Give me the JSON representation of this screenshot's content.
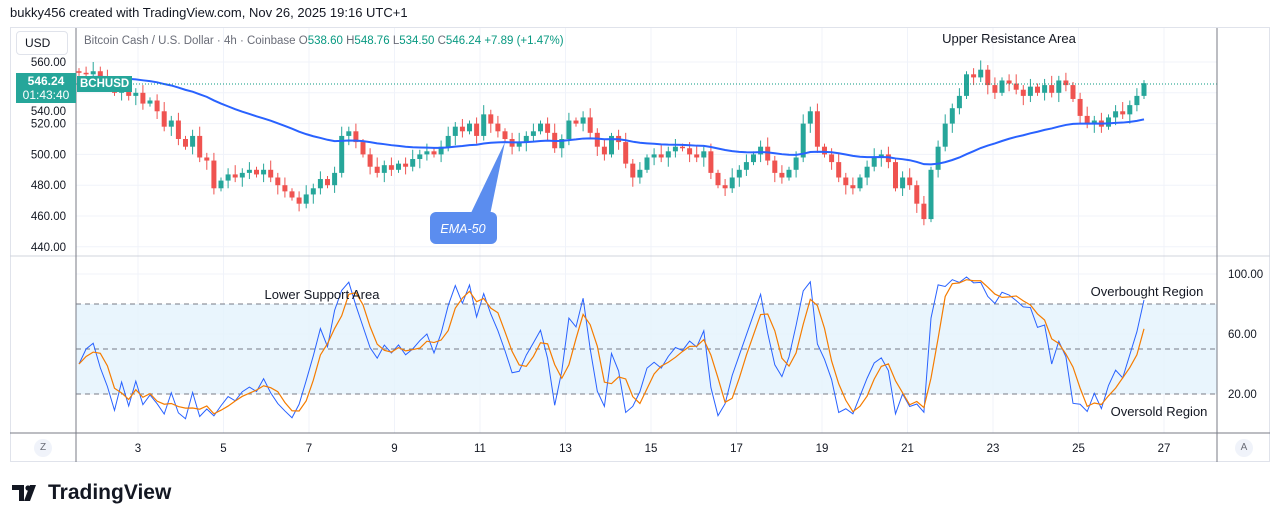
{
  "credit": "bukky456 created with TradingView.com, Nov 26, 2025 19:16 UTC+1",
  "currency_button": "USD",
  "legend": {
    "symbol_desc": "Bitcoin Cash / U.S. Dollar · 4h · Coinbase",
    "o_label": "O",
    "o": "538.60",
    "h_label": "H",
    "h": "548.76",
    "l_label": "L",
    "l": "534.50",
    "c_label": "C",
    "c": "546.24",
    "change": "+7.89 (+1.47%)"
  },
  "price_tag": {
    "price": "546.24",
    "countdown": "01:43:40",
    "symbol": "BCHUSD"
  },
  "annotations": {
    "upper": "Upper Resistance Area",
    "lower": "Lower Support Area",
    "ema": "EMA-50",
    "overbought": "Overbought Region",
    "oversold": "Oversold Region"
  },
  "axis_buttons": {
    "left": "Z",
    "right": "A"
  },
  "logo": "TradingView",
  "colors": {
    "up": "#26a69a",
    "down": "#ef5350",
    "ema": "#2962ff",
    "k": "#2962ff",
    "d": "#f57c00",
    "band": "#e3f2fd"
  },
  "chart_data": [
    {
      "type": "candlestick",
      "symbol": "BCHUSD",
      "interval": "4h",
      "ylim": [
        440,
        565
      ],
      "y_ticks": [
        "560.00",
        "540.00",
        "520.00",
        "500.00",
        "480.00",
        "460.00",
        "440.00"
      ],
      "x_ticks": [
        "3",
        "5",
        "7",
        "9",
        "11",
        "13",
        "15",
        "17",
        "19",
        "21",
        "23",
        "25",
        "27"
      ],
      "closes": [
        553,
        552,
        554,
        550,
        548,
        540,
        542,
        538,
        540,
        533,
        535,
        528,
        518,
        522,
        510,
        505,
        512,
        498,
        496,
        478,
        483,
        487,
        485,
        488,
        490,
        487,
        490,
        485,
        480,
        476,
        472,
        468,
        474,
        478,
        484,
        480,
        488,
        512,
        515,
        508,
        500,
        492,
        488,
        493,
        490,
        494,
        492,
        497,
        500,
        502,
        500,
        505,
        512,
        518,
        515,
        520,
        512,
        526,
        520,
        515,
        510,
        505,
        508,
        512,
        515,
        520,
        514,
        504,
        510,
        522,
        520,
        524,
        514,
        505,
        500,
        512,
        508,
        494,
        485,
        490,
        498,
        500,
        498,
        502,
        505,
        504,
        500,
        498,
        502,
        488,
        480,
        478,
        485,
        490,
        495,
        500,
        505,
        496,
        488,
        485,
        490,
        498,
        520,
        528,
        505,
        500,
        495,
        485,
        480,
        478,
        485,
        492,
        498,
        500,
        495,
        478,
        485,
        480,
        468,
        458,
        490,
        505,
        520,
        530,
        538,
        552,
        550,
        555,
        545,
        540,
        548,
        546,
        542,
        538,
        544,
        540,
        545,
        540,
        548,
        545,
        536,
        525,
        520,
        522,
        518,
        524,
        528,
        526,
        532,
        538,
        546.24
      ],
      "overlay": {
        "name": "EMA-50",
        "period": 50
      }
    },
    {
      "type": "line",
      "indicator": "stochastic",
      "ylim": [
        0,
        105
      ],
      "y_ticks": [
        "100.00",
        "60.00",
        "20.00"
      ],
      "bands": [
        20,
        50,
        80
      ]
    }
  ]
}
